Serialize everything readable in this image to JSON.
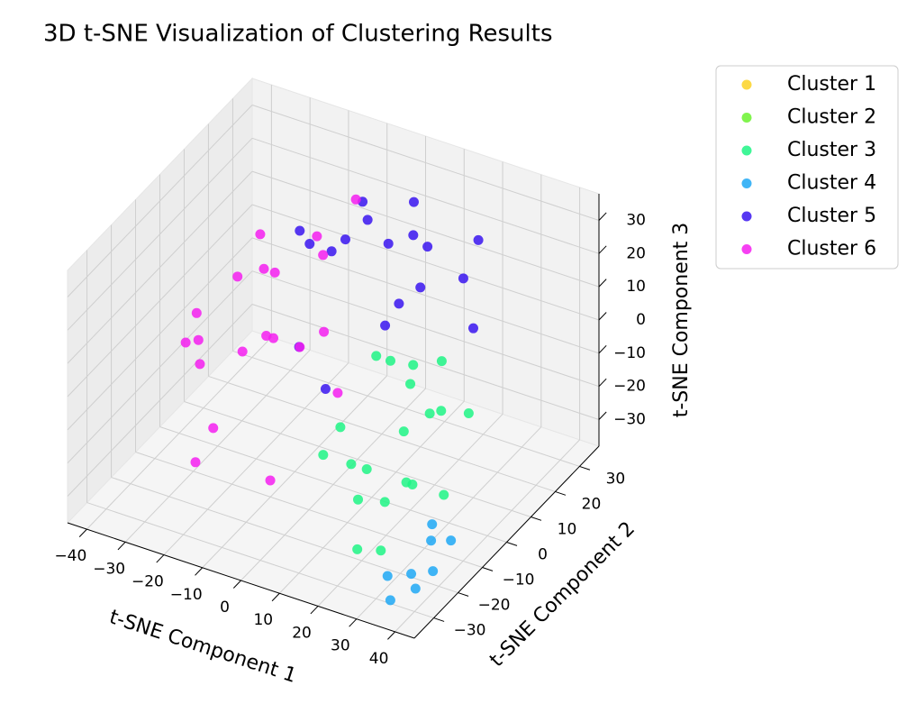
{
  "chart_data": {
    "type": "scatter3d",
    "title": "3D t-SNE Visualization of Clustering Results",
    "x_label": "t-SNE Component 1",
    "y_label": "t-SNE Component 2",
    "z_label": "t-SNE Component 3",
    "xlim": [
      -45,
      45
    ],
    "xticks": [
      {
        "value": -40,
        "label": "−40"
      },
      {
        "value": -30,
        "label": "−30"
      },
      {
        "value": -20,
        "label": "−20"
      },
      {
        "value": -10,
        "label": "−10"
      },
      0,
      10,
      20,
      30,
      40
    ],
    "ylim": [
      -38,
      38
    ],
    "yticks": [
      {
        "value": -30,
        "label": "−30"
      },
      {
        "value": -20,
        "label": "−20"
      },
      {
        "value": -10,
        "label": "−10"
      },
      0,
      10,
      20,
      30
    ],
    "zlim": [
      -38,
      38
    ],
    "zticks": [
      {
        "value": -30,
        "label": "−30"
      },
      {
        "value": -20,
        "label": "−20"
      },
      {
        "value": -10,
        "label": "−10"
      },
      0,
      10,
      20,
      30
    ],
    "grid": true,
    "legend": "outside-upper-right",
    "series": [
      {
        "name": "Cluster 1",
        "color": "#fcd225",
        "x": [],
        "y": [],
        "z": []
      },
      {
        "name": "Cluster 2",
        "color": "#6af22e",
        "x": [],
        "y": [],
        "z": []
      },
      {
        "name": "Cluster 3",
        "color": "#1ff585",
        "x": [
          10,
          15,
          20,
          25,
          30,
          12,
          18,
          22,
          28,
          35,
          8,
          16,
          24,
          32,
          14,
          20,
          26,
          30,
          5,
          22
        ],
        "y": [
          -20,
          -10,
          0,
          5,
          -15,
          10,
          -5,
          -25,
          0,
          -10,
          5,
          -18,
          -8,
          5,
          -12,
          8,
          -20,
          -28,
          -5,
          -2
        ],
        "z": [
          -10,
          -20,
          0,
          5,
          -15,
          -25,
          10,
          -30,
          -5,
          -20,
          0,
          -12,
          -22,
          -8,
          -28,
          -15,
          -18,
          -25,
          -15,
          8
        ]
      },
      {
        "name": "Cluster 4",
        "color": "#1ea8f5",
        "x": [
          33,
          36,
          38,
          40,
          35,
          39,
          37,
          41
        ],
        "y": [
          -30,
          -25,
          -20,
          -15,
          -32,
          -28,
          -18,
          -24
        ],
        "z": [
          -30,
          -32,
          -25,
          -28,
          -35,
          -33,
          -22,
          -30
        ]
      },
      {
        "name": "Cluster 5",
        "color": "#3a15f0",
        "x": [
          -15,
          -5,
          5,
          15,
          -10,
          0,
          10,
          20,
          -20,
          -8,
          2,
          12,
          25,
          -2,
          8,
          18,
          -12,
          4
        ],
        "y": [
          10,
          20,
          25,
          15,
          30,
          5,
          20,
          28,
          22,
          12,
          30,
          8,
          18,
          0,
          10,
          25,
          5,
          15
        ],
        "z": [
          25,
          30,
          20,
          28,
          15,
          32,
          10,
          22,
          10,
          20,
          25,
          15,
          5,
          -10,
          30,
          12,
          -5,
          0
        ]
      },
      {
        "name": "Cluster 6",
        "color": "#f51ef0",
        "x": [
          -32,
          -28,
          -25,
          -22,
          -18,
          -15,
          -12,
          -30,
          -26,
          -20,
          -10,
          -5,
          -35,
          -24,
          -16,
          -8,
          -2,
          -28,
          -14,
          -20
        ],
        "y": [
          -10,
          5,
          15,
          -20,
          0,
          10,
          -5,
          20,
          -15,
          25,
          12,
          -18,
          0,
          8,
          -12,
          22,
          5,
          -5,
          18,
          -25
        ],
        "z": [
          0,
          10,
          -15,
          5,
          20,
          -10,
          25,
          -20,
          15,
          10,
          -5,
          -25,
          -8,
          22,
          5,
          28,
          -15,
          -28,
          12,
          -20
        ]
      }
    ]
  }
}
